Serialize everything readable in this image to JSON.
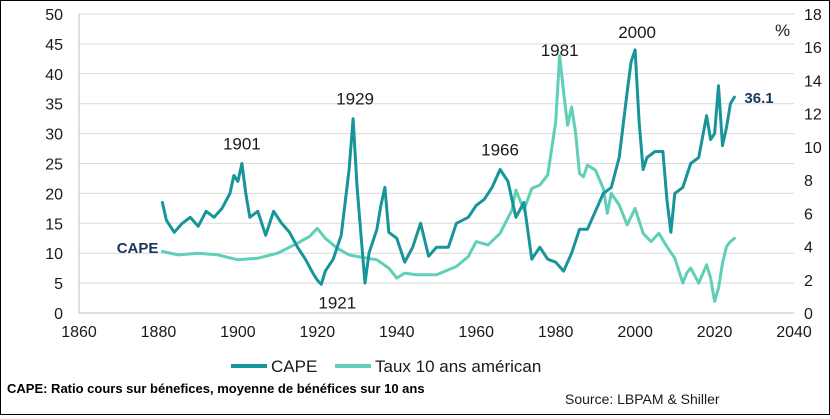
{
  "chart_data": {
    "type": "line",
    "xlim": [
      1860,
      2040
    ],
    "x_ticks": [
      1860,
      1880,
      1900,
      1920,
      1940,
      1960,
      1980,
      2000,
      2020,
      2040
    ],
    "y_left": {
      "lim": [
        0,
        50
      ],
      "ticks": [
        0,
        5,
        10,
        15,
        20,
        25,
        30,
        35,
        40,
        45,
        50
      ]
    },
    "y_right": {
      "label": "%",
      "lim": [
        0,
        18
      ],
      "ticks": [
        0,
        2,
        4,
        6,
        8,
        10,
        12,
        14,
        16,
        18
      ]
    },
    "grid": "horizontal",
    "legend_position": "bottom",
    "series": [
      {
        "name": "CAPE",
        "axis": "left",
        "color": "#17959a",
        "points": [
          [
            1881,
            18.5
          ],
          [
            1882,
            15.5
          ],
          [
            1884,
            13.5
          ],
          [
            1886,
            15
          ],
          [
            1888,
            16
          ],
          [
            1890,
            14.5
          ],
          [
            1892,
            17
          ],
          [
            1894,
            16
          ],
          [
            1896,
            17.5
          ],
          [
            1898,
            20
          ],
          [
            1899,
            23
          ],
          [
            1900,
            22
          ],
          [
            1901,
            25
          ],
          [
            1902,
            20
          ],
          [
            1903,
            16
          ],
          [
            1905,
            17
          ],
          [
            1907,
            13
          ],
          [
            1909,
            17
          ],
          [
            1911,
            15
          ],
          [
            1913,
            13.5
          ],
          [
            1915,
            11
          ],
          [
            1917,
            9
          ],
          [
            1919,
            6.5
          ],
          [
            1920,
            5.5
          ],
          [
            1921,
            4.8
          ],
          [
            1922,
            7
          ],
          [
            1924,
            9
          ],
          [
            1926,
            13
          ],
          [
            1928,
            24
          ],
          [
            1929,
            32.5
          ],
          [
            1930,
            21
          ],
          [
            1931,
            13
          ],
          [
            1932,
            5
          ],
          [
            1933,
            10
          ],
          [
            1935,
            14
          ],
          [
            1936,
            18
          ],
          [
            1937,
            21
          ],
          [
            1938,
            13.5
          ],
          [
            1940,
            12.5
          ],
          [
            1942,
            8.5
          ],
          [
            1944,
            11
          ],
          [
            1946,
            15
          ],
          [
            1948,
            9.5
          ],
          [
            1950,
            11
          ],
          [
            1953,
            11
          ],
          [
            1955,
            15
          ],
          [
            1958,
            16
          ],
          [
            1960,
            18
          ],
          [
            1962,
            19
          ],
          [
            1964,
            21
          ],
          [
            1966,
            24
          ],
          [
            1968,
            22
          ],
          [
            1970,
            16
          ],
          [
            1972,
            18.5
          ],
          [
            1974,
            9
          ],
          [
            1976,
            11
          ],
          [
            1978,
            9
          ],
          [
            1980,
            8.5
          ],
          [
            1982,
            7
          ],
          [
            1984,
            10
          ],
          [
            1986,
            14
          ],
          [
            1988,
            14
          ],
          [
            1990,
            17
          ],
          [
            1992,
            20
          ],
          [
            1994,
            21
          ],
          [
            1996,
            26
          ],
          [
            1998,
            37
          ],
          [
            1999,
            42
          ],
          [
            2000,
            44
          ],
          [
            2001,
            32
          ],
          [
            2002,
            24
          ],
          [
            2003,
            26
          ],
          [
            2005,
            27
          ],
          [
            2007,
            27
          ],
          [
            2008,
            19
          ],
          [
            2009,
            13.5
          ],
          [
            2010,
            20
          ],
          [
            2012,
            21
          ],
          [
            2014,
            25
          ],
          [
            2016,
            26
          ],
          [
            2018,
            33
          ],
          [
            2019,
            29
          ],
          [
            2020,
            30
          ],
          [
            2021,
            38
          ],
          [
            2022,
            28
          ],
          [
            2023,
            31
          ],
          [
            2024,
            35
          ],
          [
            2025,
            36.1
          ]
        ]
      },
      {
        "name": "Taux 10 ans américan",
        "axis": "right",
        "color": "#5fd0b7",
        "points": [
          [
            1881,
            3.7
          ],
          [
            1885,
            3.5
          ],
          [
            1890,
            3.6
          ],
          [
            1895,
            3.5
          ],
          [
            1900,
            3.2
          ],
          [
            1905,
            3.3
          ],
          [
            1910,
            3.6
          ],
          [
            1915,
            4.2
          ],
          [
            1918,
            4.6
          ],
          [
            1920,
            5.1
          ],
          [
            1922,
            4.5
          ],
          [
            1925,
            3.9
          ],
          [
            1928,
            3.5
          ],
          [
            1930,
            3.4
          ],
          [
            1935,
            3.2
          ],
          [
            1938,
            2.7
          ],
          [
            1940,
            2.1
          ],
          [
            1942,
            2.4
          ],
          [
            1945,
            2.3
          ],
          [
            1950,
            2.3
          ],
          [
            1955,
            2.8
          ],
          [
            1958,
            3.4
          ],
          [
            1960,
            4.3
          ],
          [
            1963,
            4.1
          ],
          [
            1966,
            4.8
          ],
          [
            1969,
            6.2
          ],
          [
            1970,
            7.4
          ],
          [
            1972,
            6.2
          ],
          [
            1974,
            7.5
          ],
          [
            1976,
            7.7
          ],
          [
            1978,
            8.3
          ],
          [
            1980,
            11.5
          ],
          [
            1981,
            15.5
          ],
          [
            1982,
            13.3
          ],
          [
            1983,
            11.3
          ],
          [
            1984,
            12.4
          ],
          [
            1985,
            10.9
          ],
          [
            1986,
            8.4
          ],
          [
            1987,
            8.2
          ],
          [
            1988,
            8.9
          ],
          [
            1990,
            8.6
          ],
          [
            1992,
            7.5
          ],
          [
            1993,
            6.0
          ],
          [
            1994,
            7.2
          ],
          [
            1996,
            6.5
          ],
          [
            1998,
            5.3
          ],
          [
            2000,
            6.3
          ],
          [
            2002,
            4.8
          ],
          [
            2004,
            4.3
          ],
          [
            2006,
            4.8
          ],
          [
            2008,
            4.0
          ],
          [
            2010,
            3.3
          ],
          [
            2012,
            1.8
          ],
          [
            2013,
            2.4
          ],
          [
            2014,
            2.7
          ],
          [
            2016,
            1.8
          ],
          [
            2018,
            2.9
          ],
          [
            2019,
            2.1
          ],
          [
            2020,
            0.7
          ],
          [
            2021,
            1.5
          ],
          [
            2022,
            3.0
          ],
          [
            2023,
            4.0
          ],
          [
            2024,
            4.3
          ],
          [
            2025,
            4.5
          ]
        ]
      }
    ],
    "annotations": [
      {
        "text": "1901",
        "x": 1901,
        "y": 25
      },
      {
        "text": "1929",
        "x": 1929,
        "y": 32.5
      },
      {
        "text": "1921",
        "x": 1921,
        "y": 4.8
      },
      {
        "text": "1966",
        "x": 1966,
        "y": 24
      },
      {
        "text": "1981",
        "x": 1981,
        "y": 43
      },
      {
        "text": "2000",
        "x": 2000,
        "y": 44
      },
      {
        "text": "36.1",
        "x": 2025,
        "y": 36.1
      },
      {
        "text": "CAPE",
        "x": 1881,
        "y": 10
      }
    ],
    "footnote": "CAPE: Ratio cours sur bénefices, moyenne de bénéfices sur  10 ans",
    "source": "Source: LBPAM & Shiller"
  }
}
